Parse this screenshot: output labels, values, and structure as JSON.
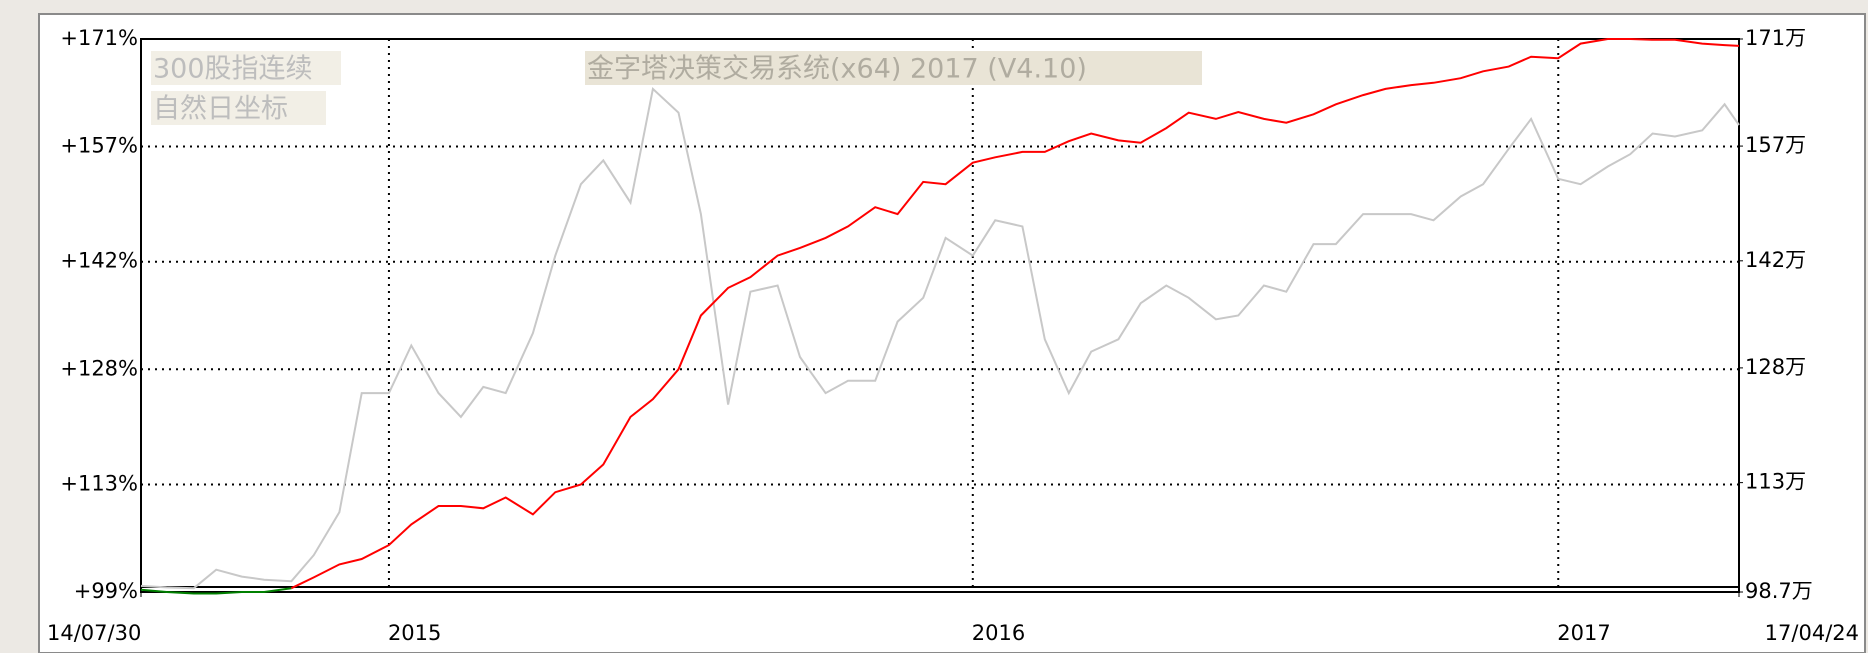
{
  "chart_data": {
    "type": "line",
    "title": "金字塔决策交易系统(x64) 2017 (V4.10)",
    "axis_mode": "自然日坐标",
    "x": [
      "14/07/30",
      "14/08/15",
      "14/09/01",
      "14/09/15",
      "14/10/01",
      "14/10/15",
      "14/11/01",
      "14/11/15",
      "14/12/01",
      "14/12/15",
      "15/01/01",
      "15/01/15",
      "15/02/01",
      "15/02/15",
      "15/03/01",
      "15/03/15",
      "15/04/01",
      "15/04/15",
      "15/05/01",
      "15/05/15",
      "15/06/01",
      "15/06/15",
      "15/07/01",
      "15/07/15",
      "15/08/01",
      "15/08/15",
      "15/09/01",
      "15/09/15",
      "15/10/01",
      "15/10/15",
      "15/11/01",
      "15/11/15",
      "15/12/01",
      "15/12/15",
      "16/01/01",
      "16/01/15",
      "16/02/01",
      "16/02/15",
      "16/03/01",
      "16/03/15",
      "16/04/01",
      "16/04/15",
      "16/05/01",
      "16/05/15",
      "16/06/01",
      "16/06/15",
      "16/07/01",
      "16/07/15",
      "16/08/01",
      "16/08/15",
      "16/09/01",
      "16/09/15",
      "16/10/01",
      "16/10/15",
      "16/11/01",
      "16/11/15",
      "16/12/01",
      "16/12/15",
      "17/01/01",
      "17/01/15",
      "17/02/01",
      "17/02/15",
      "17/03/01",
      "17/03/15",
      "17/04/01",
      "17/04/15",
      "17/04/24"
    ],
    "series": [
      {
        "name": "300股指连续",
        "color": "#c8c8c8",
        "values": [
          99.8,
          99.6,
          99.5,
          101.9,
          101.0,
          100.6,
          100.4,
          103.8,
          109.4,
          124.9,
          124.9,
          131.1,
          124.9,
          121.8,
          125.7,
          124.9,
          132.7,
          142.8,
          152.1,
          155.2,
          149.7,
          164.5,
          161.4,
          148.2,
          123.4,
          138.1,
          138.9,
          129.6,
          124.9,
          126.5,
          126.5,
          134.2,
          137.3,
          145.1,
          142.8,
          147.4,
          146.6,
          131.9,
          124.9,
          130.3,
          131.9,
          136.6,
          138.9,
          137.3,
          134.5,
          135.0,
          138.9,
          138.1,
          144.3,
          144.3,
          148.2,
          148.2,
          148.2,
          147.4,
          150.5,
          152.1,
          156.7,
          160.6,
          152.8,
          152.1,
          154.4,
          156.0,
          158.7,
          158.3,
          159.1,
          162.5,
          159.8
        ]
      },
      {
        "color": "#ff0000",
        "down_color": "#008000",
        "values": [
          99.3,
          99.0,
          98.8,
          98.8,
          99.0,
          99.0,
          99.5,
          100.9,
          102.6,
          103.3,
          105.1,
          107.8,
          110.2,
          110.2,
          109.9,
          111.3,
          109.1,
          112.0,
          113.0,
          115.6,
          121.8,
          124.1,
          128.0,
          135.0,
          138.6,
          140.0,
          142.8,
          143.8,
          145.1,
          146.6,
          149.1,
          148.2,
          152.4,
          152.1,
          154.9,
          155.6,
          156.3,
          156.3,
          157.7,
          158.7,
          157.8,
          157.5,
          159.4,
          161.4,
          160.6,
          161.5,
          160.6,
          160.1,
          161.2,
          162.5,
          163.7,
          164.5,
          165.0,
          165.3,
          165.9,
          166.8,
          167.4,
          168.7,
          168.5,
          170.4,
          171.0,
          171.0,
          170.9,
          170.9,
          170.4,
          170.2,
          170.1
        ]
      }
    ],
    "xlim": [
      "14/07/30",
      "17/04/24"
    ],
    "xticks": [
      "14/07/30",
      {
        "value": "15/01/01",
        "label": "2015"
      },
      {
        "value": "16/01/01",
        "label": "2016"
      },
      {
        "value": "17/01/01",
        "label": "2017"
      },
      "17/04/24"
    ],
    "ylim": [
      99,
      171
    ],
    "yticks": [
      {
        "value": 99,
        "label": "+99%"
      },
      {
        "value": 113,
        "label": "+113%"
      },
      {
        "value": 128,
        "label": "+128%"
      },
      {
        "value": 142,
        "label": "+142%"
      },
      {
        "value": 157,
        "label": "+157%"
      },
      {
        "value": 171,
        "label": "+171%"
      }
    ],
    "y2lim": [
      98.7,
      171
    ],
    "y2ticks": [
      {
        "value": 98.7,
        "label": "98.7万"
      },
      {
        "value": 113,
        "label": "113万"
      },
      {
        "value": 128,
        "label": "128万"
      },
      {
        "value": 142,
        "label": "142万"
      },
      {
        "value": 157,
        "label": "157万"
      },
      {
        "value": 171,
        "label": "171万"
      }
    ],
    "grid": true
  }
}
